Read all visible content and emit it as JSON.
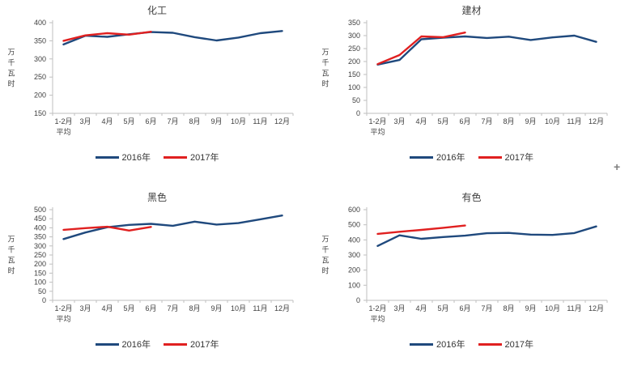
{
  "page": {
    "background": "#ffffff"
  },
  "colors": {
    "axis": "#BFBFBF",
    "tick_text": "#404040",
    "title_text": "#3F3F3F",
    "series_2016": "#1F497D",
    "series_2017": "#E02020"
  },
  "cursor": {
    "glyph": "+"
  },
  "chart_data": [
    {
      "type": "line",
      "title": "化工",
      "ylabel": "万千瓦时",
      "xlabel": "",
      "categories": [
        "1-2月\n平均",
        "3月",
        "4月",
        "5月",
        "6月",
        "7月",
        "8月",
        "9月",
        "10月",
        "11月",
        "12月"
      ],
      "ylim": [
        150,
        400
      ],
      "ytick_step": 50,
      "grid": false,
      "legend_position": "bottom",
      "series": [
        {
          "name": "2016年",
          "color": "#1F497D",
          "values": [
            340,
            364,
            361,
            368,
            374,
            372,
            360,
            351,
            359,
            371,
            377
          ]
        },
        {
          "name": "2017年",
          "color": "#E02020",
          "values": [
            350,
            365,
            371,
            367,
            375,
            null,
            null,
            null,
            null,
            null,
            null
          ]
        }
      ]
    },
    {
      "type": "line",
      "title": "建材",
      "ylabel": "万千瓦时",
      "xlabel": "",
      "categories": [
        "1-2月\n平均",
        "3月",
        "4月",
        "5月",
        "6月",
        "7月",
        "8月",
        "9月",
        "10月",
        "11月",
        "12月"
      ],
      "ylim": [
        0,
        350
      ],
      "ytick_step": 50,
      "grid": false,
      "legend_position": "bottom",
      "series": [
        {
          "name": "2016年",
          "color": "#1F497D",
          "values": [
            188,
            206,
            286,
            292,
            297,
            291,
            296,
            283,
            293,
            300,
            276
          ]
        },
        {
          "name": "2017年",
          "color": "#E02020",
          "values": [
            190,
            225,
            297,
            294,
            312,
            null,
            null,
            null,
            null,
            null,
            null
          ]
        }
      ]
    },
    {
      "type": "line",
      "title": "黑色",
      "ylabel": "万千瓦时",
      "xlabel": "",
      "categories": [
        "1-2月\n平均",
        "3月",
        "4月",
        "5月",
        "6月",
        "7月",
        "8月",
        "9月",
        "10月",
        "11月",
        "12月"
      ],
      "ylim": [
        0,
        500
      ],
      "ytick_step": 50,
      "grid": false,
      "legend_position": "bottom",
      "series": [
        {
          "name": "2016年",
          "color": "#1F497D",
          "values": [
            338,
            374,
            403,
            416,
            422,
            411,
            434,
            418,
            426,
            447,
            468
          ]
        },
        {
          "name": "2017年",
          "color": "#E02020",
          "values": [
            389,
            398,
            406,
            385,
            405,
            null,
            null,
            null,
            null,
            null,
            null
          ]
        }
      ]
    },
    {
      "type": "line",
      "title": "有色",
      "ylabel": "万千瓦时",
      "xlabel": "",
      "categories": [
        "1-2月\n平均",
        "3月",
        "4月",
        "5月",
        "6月",
        "7月",
        "8月",
        "9月",
        "10月",
        "11月",
        "12月"
      ],
      "ylim": [
        0,
        600
      ],
      "ytick_step": 100,
      "grid": false,
      "legend_position": "bottom",
      "series": [
        {
          "name": "2016年",
          "color": "#1F497D",
          "values": [
            360,
            430,
            407,
            419,
            428,
            444,
            446,
            435,
            433,
            445,
            489
          ]
        },
        {
          "name": "2017年",
          "color": "#E02020",
          "values": [
            440,
            454,
            466,
            480,
            495,
            null,
            null,
            null,
            null,
            null,
            null
          ]
        }
      ]
    }
  ]
}
